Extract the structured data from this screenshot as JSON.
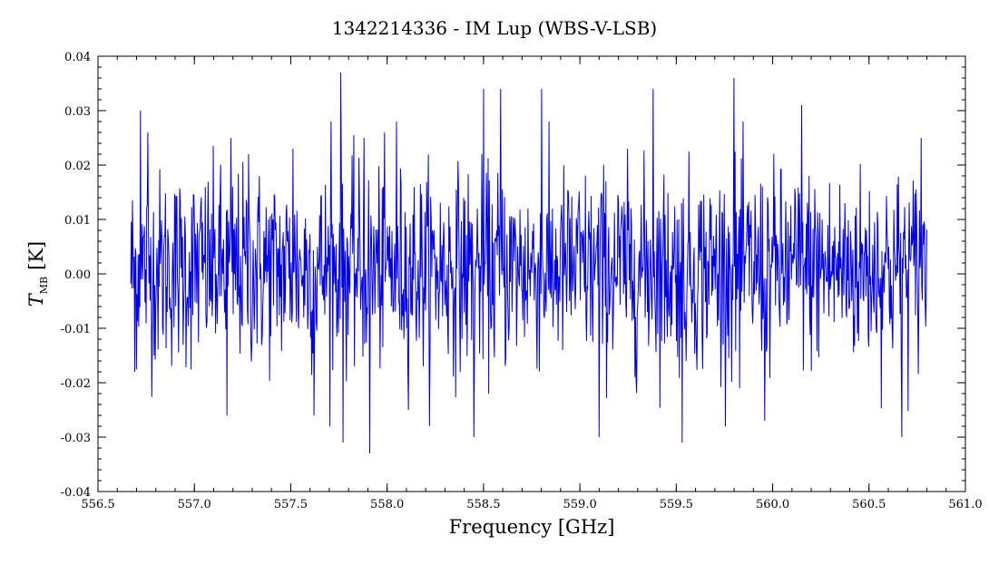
{
  "chart_data": {
    "type": "line",
    "title": "1342214336 - IM Lup (WBS-V-LSB)",
    "xlabel": "Frequency [GHz]",
    "ylabel": {
      "symbol": "T",
      "subscript": "MB",
      "unit": "[K]"
    },
    "xlim": [
      556.5,
      561.0
    ],
    "ylim": [
      -0.04,
      0.04
    ],
    "x_ticks": [
      556.5,
      557.0,
      557.5,
      558.0,
      558.5,
      559.0,
      559.5,
      560.0,
      560.5,
      561.0
    ],
    "x_tick_labels": [
      "556.5",
      "557.0",
      "557.5",
      "558.0",
      "558.5",
      "559.0",
      "559.5",
      "560.0",
      "560.5",
      "561.0"
    ],
    "y_ticks": [
      -0.04,
      -0.03,
      -0.02,
      -0.01,
      0.0,
      0.01,
      0.02,
      0.03,
      0.04
    ],
    "y_tick_labels": [
      "-0.04",
      "-0.03",
      "-0.02",
      "-0.01",
      "0.00",
      "0.01",
      "0.02",
      "0.03",
      "0.04"
    ],
    "grid": false,
    "series": [
      {
        "color": "#0000ee",
        "x_range": [
          556.67,
          560.8
        ],
        "mean": 0.001,
        "rms": 0.009,
        "samples": 1400,
        "spikes": [
          {
            "x": 556.69,
            "y": -0.018
          },
          {
            "x": 556.72,
            "y": 0.03
          },
          {
            "x": 556.76,
            "y": 0.026
          },
          {
            "x": 557.17,
            "y": -0.026
          },
          {
            "x": 557.19,
            "y": 0.025
          },
          {
            "x": 557.28,
            "y": 0.022
          },
          {
            "x": 557.51,
            "y": 0.023
          },
          {
            "x": 557.62,
            "y": -0.026
          },
          {
            "x": 557.71,
            "y": 0.028
          },
          {
            "x": 557.76,
            "y": 0.037
          },
          {
            "x": 557.77,
            "y": -0.031
          },
          {
            "x": 557.88,
            "y": 0.025
          },
          {
            "x": 557.91,
            "y": -0.033
          },
          {
            "x": 558.05,
            "y": 0.028
          },
          {
            "x": 558.45,
            "y": -0.03
          },
          {
            "x": 558.5,
            "y": 0.034
          },
          {
            "x": 558.59,
            "y": 0.034
          },
          {
            "x": 558.8,
            "y": 0.034
          },
          {
            "x": 559.1,
            "y": -0.03
          },
          {
            "x": 559.38,
            "y": 0.034
          },
          {
            "x": 559.53,
            "y": -0.031
          },
          {
            "x": 559.8,
            "y": 0.036
          },
          {
            "x": 559.83,
            "y": -0.021
          },
          {
            "x": 559.96,
            "y": -0.027
          },
          {
            "x": 560.15,
            "y": 0.031
          },
          {
            "x": 560.67,
            "y": -0.03
          },
          {
            "x": 560.77,
            "y": 0.025
          }
        ]
      }
    ]
  }
}
